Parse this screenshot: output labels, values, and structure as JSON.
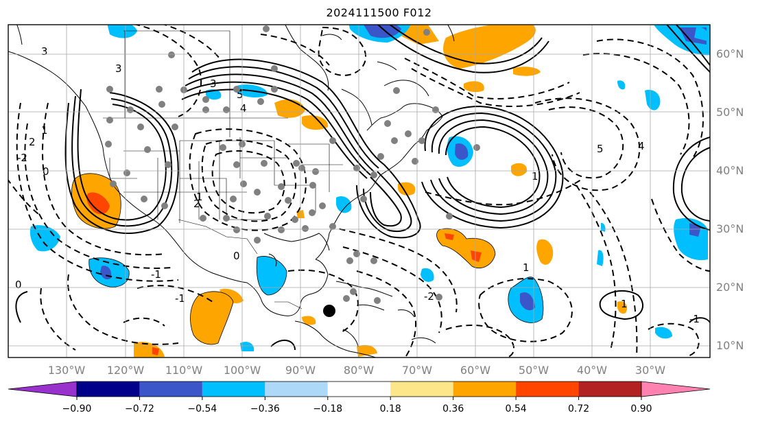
{
  "title": "2024111500 F012",
  "lat_labels": [
    "60°N",
    "50°N",
    "40°N",
    "30°N",
    "20°N",
    "10°N"
  ],
  "lon_labels": [
    "130°W",
    "120°W",
    "110°W",
    "100°W",
    "90°W",
    "80°W",
    "70°W",
    "60°W",
    "50°W",
    "40°W",
    "30°W"
  ],
  "colorbar": {
    "ticks": [
      "−0.90",
      "−0.72",
      "−0.54",
      "−0.36",
      "−0.18",
      "0.18",
      "0.36",
      "0.54",
      "0.72",
      "0.90"
    ],
    "colors": {
      "under": "#9932cc",
      "bins": [
        "#00008b",
        "#3a56c8",
        "#00bfff",
        "#add8f8",
        "#ffffff",
        "#fde68a",
        "#ffa500",
        "#ff4500",
        "#b22222"
      ],
      "over": "#ff82b0"
    }
  },
  "contour_labels": [
    "3",
    "3",
    "2",
    "1",
    "0",
    "5",
    "4",
    "3",
    "2",
    "1",
    "0",
    "-1",
    "-2",
    "5",
    "4",
    "1",
    "-2",
    "-1",
    "1",
    "-1",
    "1",
    "0"
  ],
  "colors": {
    "positive_fill": "#ffa500",
    "positive_core": "#ff4500",
    "negative_fill": "#00bfff",
    "negative_core": "#3a56c8",
    "station": "#808080",
    "marker": "#000000",
    "grid": "#a9a9a9"
  }
}
